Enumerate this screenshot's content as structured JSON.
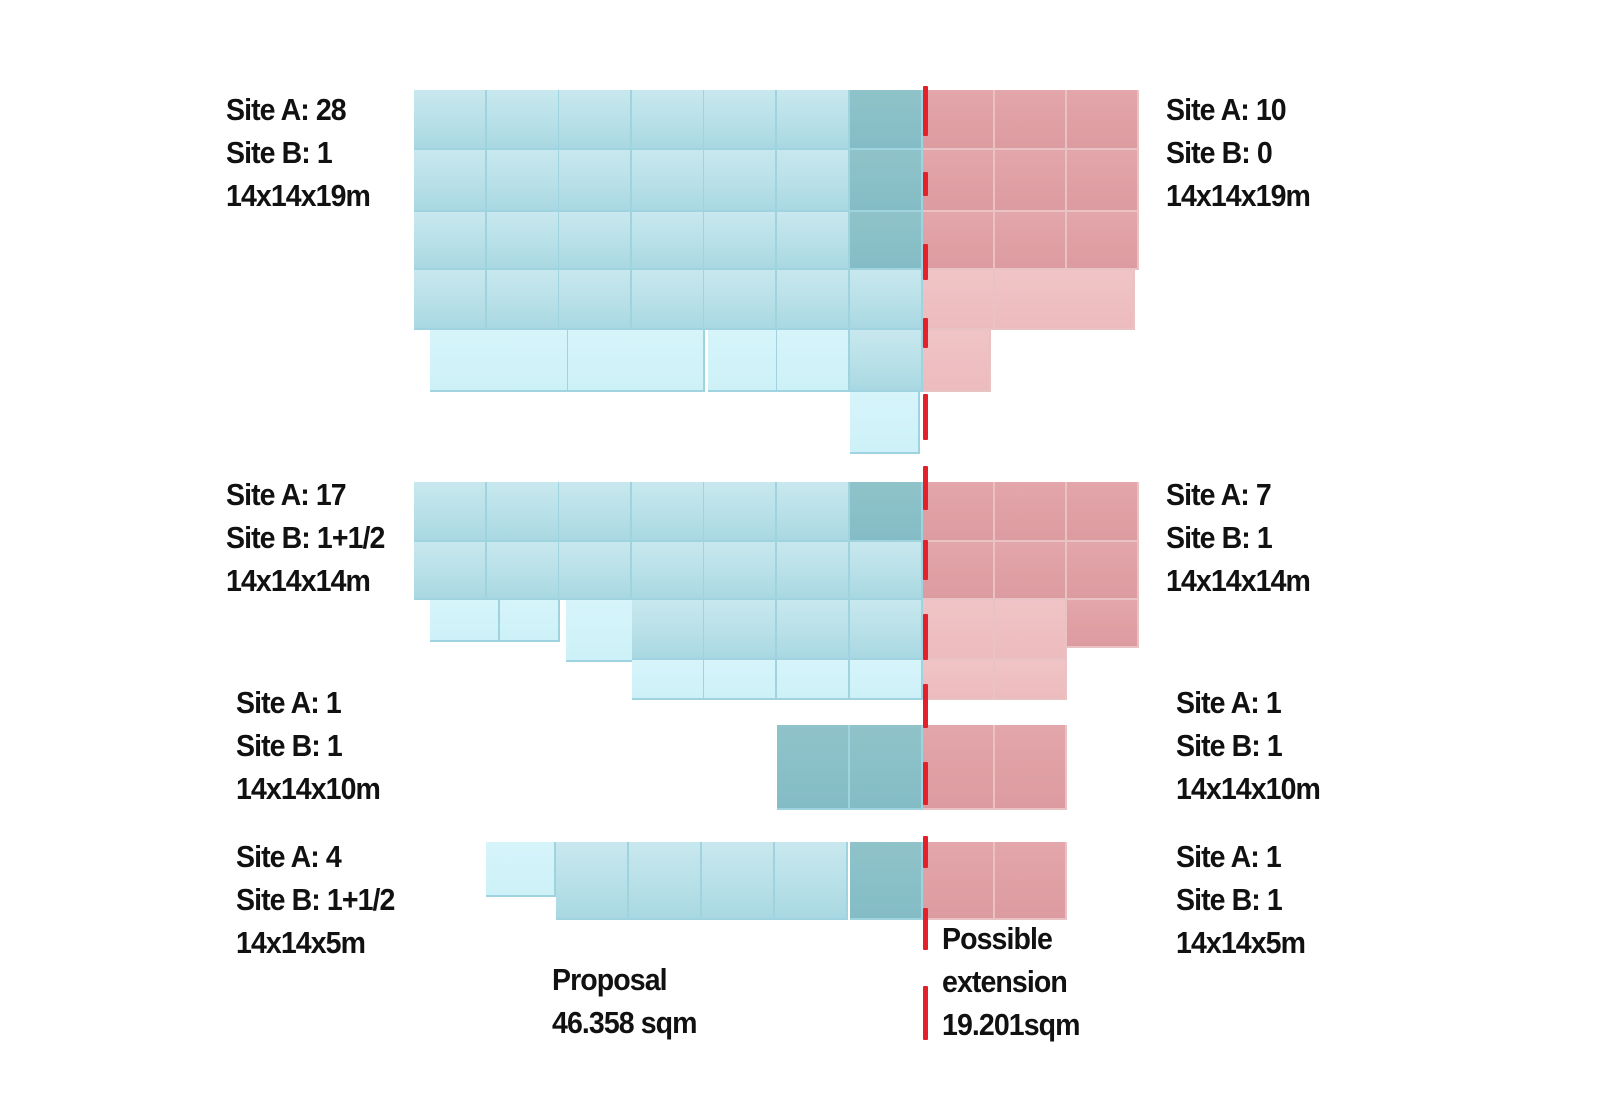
{
  "rows": [
    {
      "left": {
        "site_a": "Site A: 28",
        "site_b": "Site B: 1",
        "size": "14x14x19m"
      },
      "right": {
        "site_a": "Site A: 10",
        "site_b": "Site B: 0",
        "size": "14x14x19m"
      }
    },
    {
      "left": {
        "site_a": "Site A: 17",
        "site_b": "Site B: 1+1/2",
        "size": "14x14x14m"
      },
      "right": {
        "site_a": "Site A: 7",
        "site_b": "Site B: 1",
        "size": "14x14x14m"
      }
    },
    {
      "left": {
        "site_a": "Site A: 1",
        "site_b": "Site B: 1",
        "size": "14x14x10m"
      },
      "right": {
        "site_a": "Site A: 1",
        "site_b": "Site B: 1",
        "size": "14x14x10m"
      }
    },
    {
      "left": {
        "site_a": "Site A: 4",
        "site_b": "Site B: 1+1/2",
        "size": "14x14x5m"
      },
      "right": {
        "site_a": "Site A: 1",
        "site_b": "Site B: 1",
        "size": "14x14x5m"
      }
    }
  ],
  "proposal": {
    "title": "Proposal",
    "area": "46.358 sqm"
  },
  "extension": {
    "line1": "Possible",
    "line2": "extension",
    "area": "19.201sqm"
  },
  "colors": {
    "proposal": "#b8e0e8",
    "extension": "#dc9ba0",
    "divider": "#e4202a"
  }
}
